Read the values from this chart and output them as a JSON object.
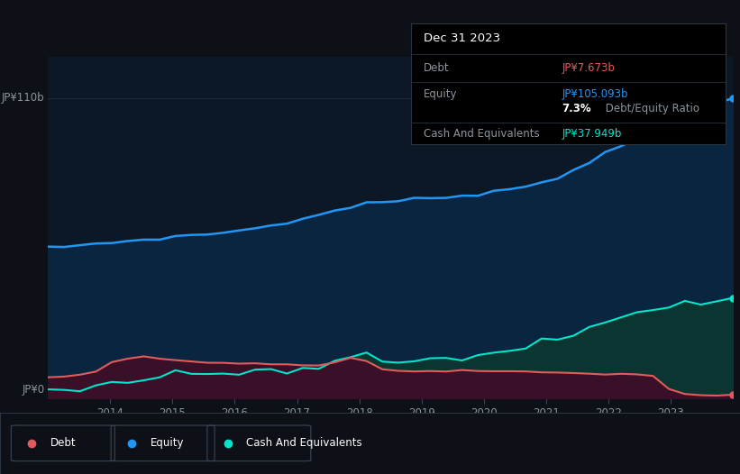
{
  "background_color": "#0d1117",
  "plot_bg_color": "#0d1827",
  "ylabel_top": "JP¥110b",
  "ylabel_bottom": "JP¥0",
  "equity_color": "#2196f3",
  "equity_fill": "#0a2540",
  "debt_color": "#e05c5c",
  "debt_fill": "#3a1028",
  "cash_color": "#00e5cc",
  "cash_fill": "#0a3530",
  "grid_color": "#1e2d3d",
  "axis_color": "#3a4556",
  "text_color": "#8b949e",
  "tooltip_bg": "#000000",
  "tooltip_border": "#2a3540",
  "tooltip": {
    "date": "Dec 31 2023",
    "debt_label": "Debt",
    "debt_value": "JP¥7.673b",
    "equity_label": "Equity",
    "equity_value": "JP¥105.093b",
    "ratio_bold": "7.3%",
    "ratio_normal": " Debt/Equity Ratio",
    "cash_label": "Cash And Equivalents",
    "cash_value": "JP¥37.949b"
  },
  "legend": [
    {
      "label": "Debt",
      "color": "#e05c5c"
    },
    {
      "label": "Equity",
      "color": "#2196f3"
    },
    {
      "label": "Cash And Equivalents",
      "color": "#00e5cc"
    }
  ]
}
